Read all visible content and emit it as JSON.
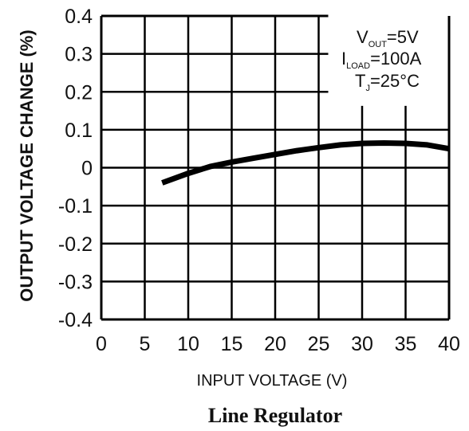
{
  "chart_data": {
    "type": "line",
    "title": "",
    "caption": "Line Regulator",
    "xlabel": "INPUT VOLTAGE (V)",
    "ylabel": "OUTPUT VOLTAGE CHANGE (%)",
    "xlim": [
      0,
      40
    ],
    "ylim": [
      -0.4,
      0.4
    ],
    "x_ticks": [
      "0",
      "5",
      "10",
      "15",
      "20",
      "25",
      "30",
      "35",
      "40"
    ],
    "y_ticks": [
      "0.4",
      "0.3",
      "0.2",
      "0.1",
      "0",
      "-0.1",
      "-0.2",
      "-0.3",
      "-0.4"
    ],
    "grid": true,
    "conditions": {
      "vout_main": "V",
      "vout_sub": "OUT",
      "vout_value": "=5V",
      "iload_main": "I",
      "iload_sub": "LOAD",
      "iload_value": "=100A",
      "tj_main": "T",
      "tj_sub": "J",
      "tj_value": "=25°C"
    },
    "series": [
      {
        "x": [
          7,
          10,
          12.5,
          15,
          17.5,
          20,
          22.5,
          25,
          27.5,
          30,
          32.5,
          35,
          37.5,
          40
        ],
        "y": [
          -0.04,
          -0.015,
          0.003,
          0.015,
          0.025,
          0.035,
          0.045,
          0.053,
          0.06,
          0.064,
          0.065,
          0.064,
          0.06,
          0.05
        ]
      }
    ],
    "colors": {
      "line": "#000000",
      "grid": "#000000",
      "text": "#111111"
    }
  }
}
